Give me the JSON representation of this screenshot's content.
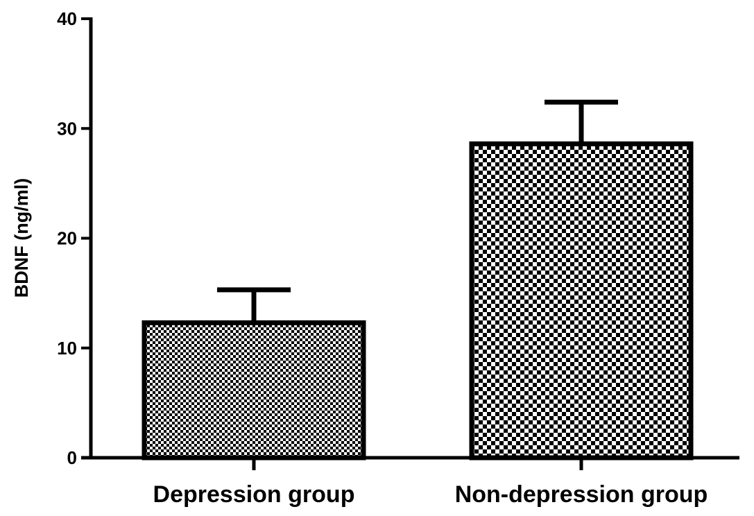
{
  "chart_data": {
    "type": "bar",
    "categories": [
      "Depression group",
      "Non-depression group"
    ],
    "values": [
      12.3,
      28.6
    ],
    "error_upper": [
      15.3,
      32.4
    ],
    "error_bar": "positive",
    "ylabel": "BDNF (ng/ml)",
    "xlabel": "",
    "ylim": [
      0,
      40
    ],
    "yticks": [
      "0",
      "10",
      "20",
      "30",
      "40"
    ],
    "grid": false,
    "legend": "none",
    "bar_fill": [
      "fine-checkerboard",
      "coarse-checkerboard"
    ],
    "bar_color": "#000000"
  }
}
